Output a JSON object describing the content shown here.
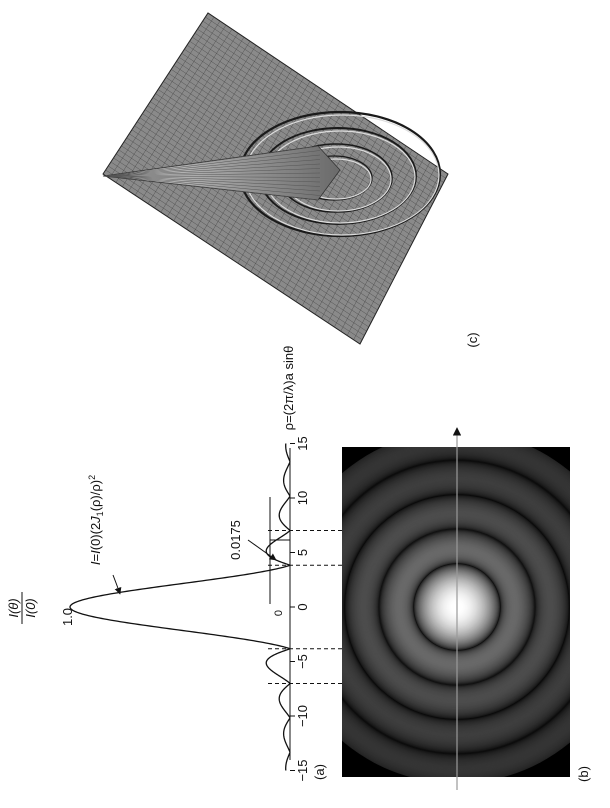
{
  "panels": {
    "a": {
      "label": "(a)"
    },
    "b": {
      "label": "(b)"
    },
    "c": {
      "label": "(c)"
    }
  },
  "chart_data": {
    "type": "line",
    "x_ticks": [
      "−15",
      "−10",
      "−5",
      "0",
      "5",
      "10",
      "15"
    ],
    "x_tick_values": [
      -15,
      -10,
      -5,
      0,
      5,
      10,
      15
    ],
    "x_axis_label": "ρ=(2π/λ)a sinθ",
    "xlim": [
      -15,
      15
    ],
    "y_axis_label_num": "I(θ)",
    "y_axis_label_den": "I(0)",
    "y_peak_label": "1.0",
    "y_zero_label": "0",
    "formula_label": "I=I(0)(2J1(ρ)/ρ)²",
    "secondary_max_label": "0.0175",
    "minima_markers": [
      -7.016,
      -3.832,
      3.832,
      7.016
    ],
    "series": [
      {
        "function": "(2*J1(rho)/rho)^2",
        "x_range": [
          -15,
          15
        ]
      }
    ]
  },
  "colors": {
    "ink": "#111111",
    "airy_background": "#000000",
    "mesh_fill": "#9a9a9a"
  }
}
